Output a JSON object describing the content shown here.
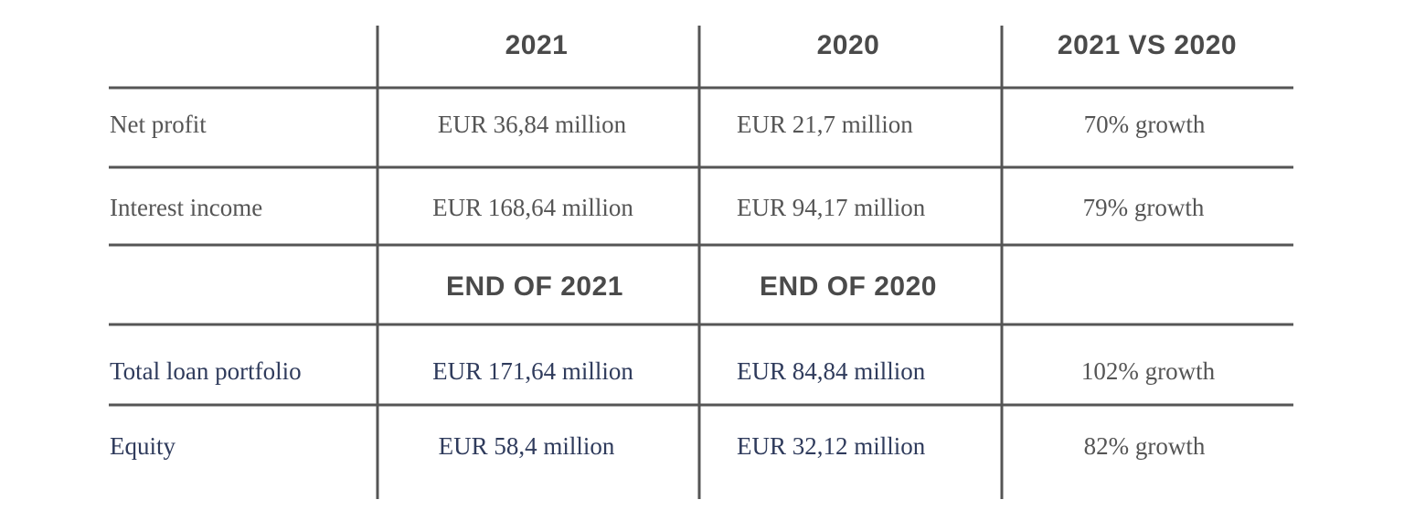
{
  "table": {
    "header": [
      "2021",
      "2020",
      "2021 VS 2020"
    ],
    "rows": [
      [
        "Net profit",
        "EUR 36,84 million",
        "EUR 21,7 million",
        "70% growth"
      ],
      [
        "Interest income",
        "EUR 168,64 million",
        "EUR 94,17 million",
        "79% growth"
      ]
    ],
    "subheader": [
      "END OF 2021",
      "END OF 2020"
    ],
    "rows2": [
      [
        "Total loan portfolio",
        "EUR 171,64 million",
        "EUR 84,84 million",
        "102% growth"
      ],
      [
        "Equity",
        "EUR 58,4 million",
        "EUR 32,12 million",
        "82% growth"
      ]
    ]
  }
}
